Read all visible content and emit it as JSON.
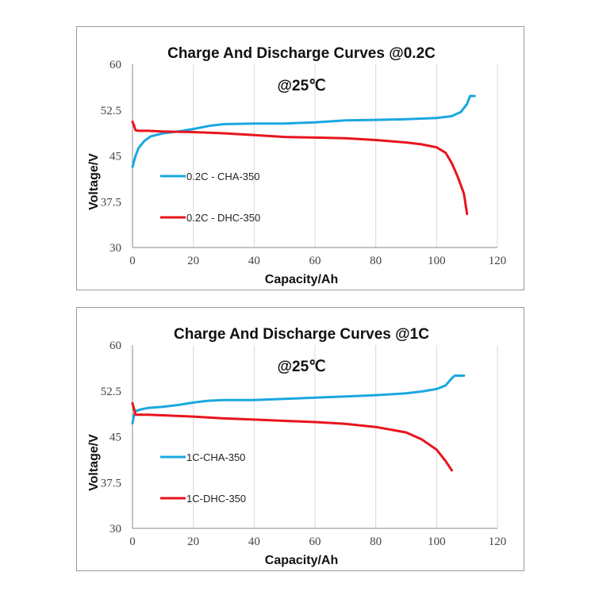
{
  "chart_data": [
    {
      "type": "line",
      "title": "Charge And Discharge Curves @0.2C",
      "subtitle": "@25℃",
      "xlabel": "Capacity/Ah",
      "ylabel": "Voltage/V",
      "xlim": [
        0,
        120
      ],
      "ylim": [
        30,
        60
      ],
      "xticks": [
        "0",
        "20",
        "40",
        "60",
        "80",
        "100",
        "120"
      ],
      "yticks": [
        "30",
        "37.5",
        "45",
        "52.5",
        "60"
      ],
      "grid": "vertical",
      "legend_position": "left",
      "series": [
        {
          "name": "0.2C - CHA-350",
          "color": "#1aa7e0",
          "points": [
            [
              0,
              43.2
            ],
            [
              1,
              45.0
            ],
            [
              2,
              46.3
            ],
            [
              4,
              47.5
            ],
            [
              6,
              48.2
            ],
            [
              10,
              48.7
            ],
            [
              15,
              49.0
            ],
            [
              20,
              49.4
            ],
            [
              25,
              49.9
            ],
            [
              30,
              50.2
            ],
            [
              40,
              50.3
            ],
            [
              50,
              50.3
            ],
            [
              60,
              50.5
            ],
            [
              70,
              50.8
            ],
            [
              80,
              50.9
            ],
            [
              90,
              51.0
            ],
            [
              100,
              51.2
            ],
            [
              105,
              51.5
            ],
            [
              108,
              52.2
            ],
            [
              110,
              53.5
            ],
            [
              111,
              54.8
            ],
            [
              112.5,
              54.8
            ]
          ]
        },
        {
          "name": "0.2C - DHC-350",
          "color": "#e8141c",
          "points": [
            [
              0,
              50.6
            ],
            [
              0.5,
              50.0
            ],
            [
              1,
              49.2
            ],
            [
              2,
              49.1
            ],
            [
              5,
              49.1
            ],
            [
              10,
              49.0
            ],
            [
              20,
              48.9
            ],
            [
              30,
              48.7
            ],
            [
              40,
              48.4
            ],
            [
              50,
              48.1
            ],
            [
              60,
              48.0
            ],
            [
              70,
              47.9
            ],
            [
              80,
              47.6
            ],
            [
              90,
              47.2
            ],
            [
              95,
              46.9
            ],
            [
              100,
              46.4
            ],
            [
              103,
              45.5
            ],
            [
              105,
              43.8
            ],
            [
              107,
              41.5
            ],
            [
              109,
              38.8
            ],
            [
              110,
              35.5
            ]
          ]
        }
      ]
    },
    {
      "type": "line",
      "title": "Charge And Discharge Curves @1C",
      "subtitle": "@25℃",
      "xlabel": "Capacity/Ah",
      "ylabel": "Voltage/V",
      "xlim": [
        0,
        120
      ],
      "ylim": [
        30,
        60
      ],
      "xticks": [
        "0",
        "20",
        "40",
        "60",
        "80",
        "100",
        "120"
      ],
      "yticks": [
        "30",
        "37.5",
        "45",
        "52.5",
        "60"
      ],
      "grid": "vertical",
      "legend_position": "left",
      "series": [
        {
          "name": "1C-CHA-350",
          "color": "#1aa7e0",
          "points": [
            [
              0,
              47.2
            ],
            [
              0.5,
              48.5
            ],
            [
              1,
              49.2
            ],
            [
              3,
              49.5
            ],
            [
              5,
              49.7
            ],
            [
              10,
              49.9
            ],
            [
              15,
              50.2
            ],
            [
              20,
              50.6
            ],
            [
              25,
              50.9
            ],
            [
              30,
              51.0
            ],
            [
              40,
              51.0
            ],
            [
              50,
              51.2
            ],
            [
              60,
              51.4
            ],
            [
              70,
              51.6
            ],
            [
              80,
              51.8
            ],
            [
              90,
              52.1
            ],
            [
              95,
              52.4
            ],
            [
              100,
              52.8
            ],
            [
              103,
              53.4
            ],
            [
              105,
              54.6
            ],
            [
              106,
              55.0
            ],
            [
              109,
              55.0
            ]
          ]
        },
        {
          "name": "1C-DHC-350",
          "color": "#e8141c",
          "points": [
            [
              0,
              50.5
            ],
            [
              0.5,
              49.6
            ],
            [
              1,
              48.6
            ],
            [
              2,
              48.6
            ],
            [
              5,
              48.6
            ],
            [
              10,
              48.5
            ],
            [
              20,
              48.3
            ],
            [
              30,
              48.0
            ],
            [
              40,
              47.8
            ],
            [
              50,
              47.6
            ],
            [
              60,
              47.4
            ],
            [
              70,
              47.1
            ],
            [
              80,
              46.6
            ],
            [
              90,
              45.7
            ],
            [
              95,
              44.6
            ],
            [
              100,
              42.9
            ],
            [
              103,
              41.0
            ],
            [
              105,
              39.5
            ]
          ]
        }
      ]
    }
  ]
}
